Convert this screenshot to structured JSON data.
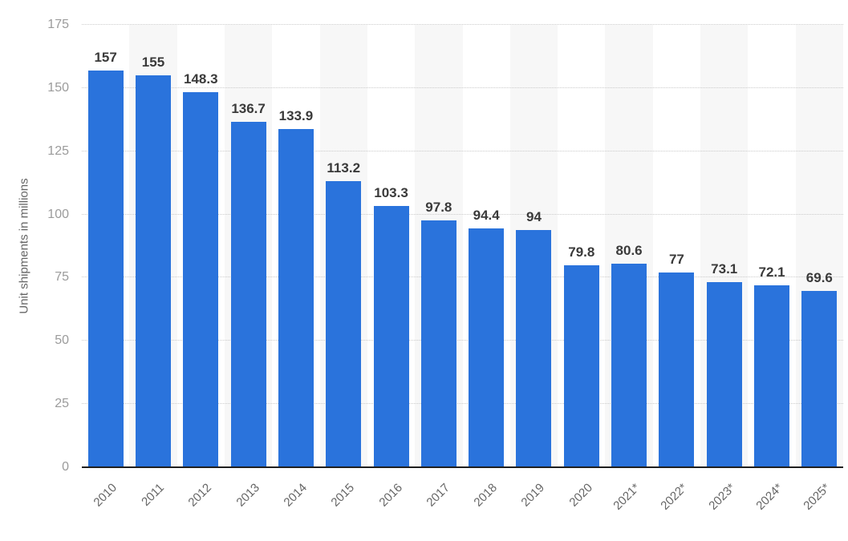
{
  "chart_data": {
    "type": "bar",
    "title": "",
    "xlabel": "",
    "ylabel": "Unit shipments in millions",
    "categories": [
      "2010",
      "2011",
      "2012",
      "2013",
      "2014",
      "2015",
      "2016",
      "2017",
      "2018",
      "2019",
      "2020",
      "2021*",
      "2022*",
      "2023*",
      "2024*",
      "2025*"
    ],
    "values": [
      157,
      155,
      148.3,
      136.7,
      133.9,
      113.2,
      103.3,
      97.8,
      94.4,
      94,
      79.8,
      80.6,
      77,
      73.1,
      72.1,
      69.6
    ],
    "value_labels": [
      "157",
      "155",
      "148.3",
      "136.7",
      "133.9",
      "113.2",
      "103.3",
      "97.8",
      "94.4",
      "94",
      "79.8",
      "80.6",
      "77",
      "73.1",
      "72.1",
      "69.6"
    ],
    "ylim": [
      0,
      175
    ],
    "yticks": [
      0,
      25,
      50,
      75,
      100,
      125,
      150,
      175
    ],
    "grid": "horizontal-dotted",
    "legend": "none",
    "colors": {
      "bar": "#2a73dc",
      "stripe": "#f7f7f7",
      "grid": "#cbcbcb",
      "axis": "#1f1f1f",
      "y_tick_label": "#9b9b9b",
      "x_tick_label": "#666666",
      "value_label": "#3a3a3a"
    }
  }
}
